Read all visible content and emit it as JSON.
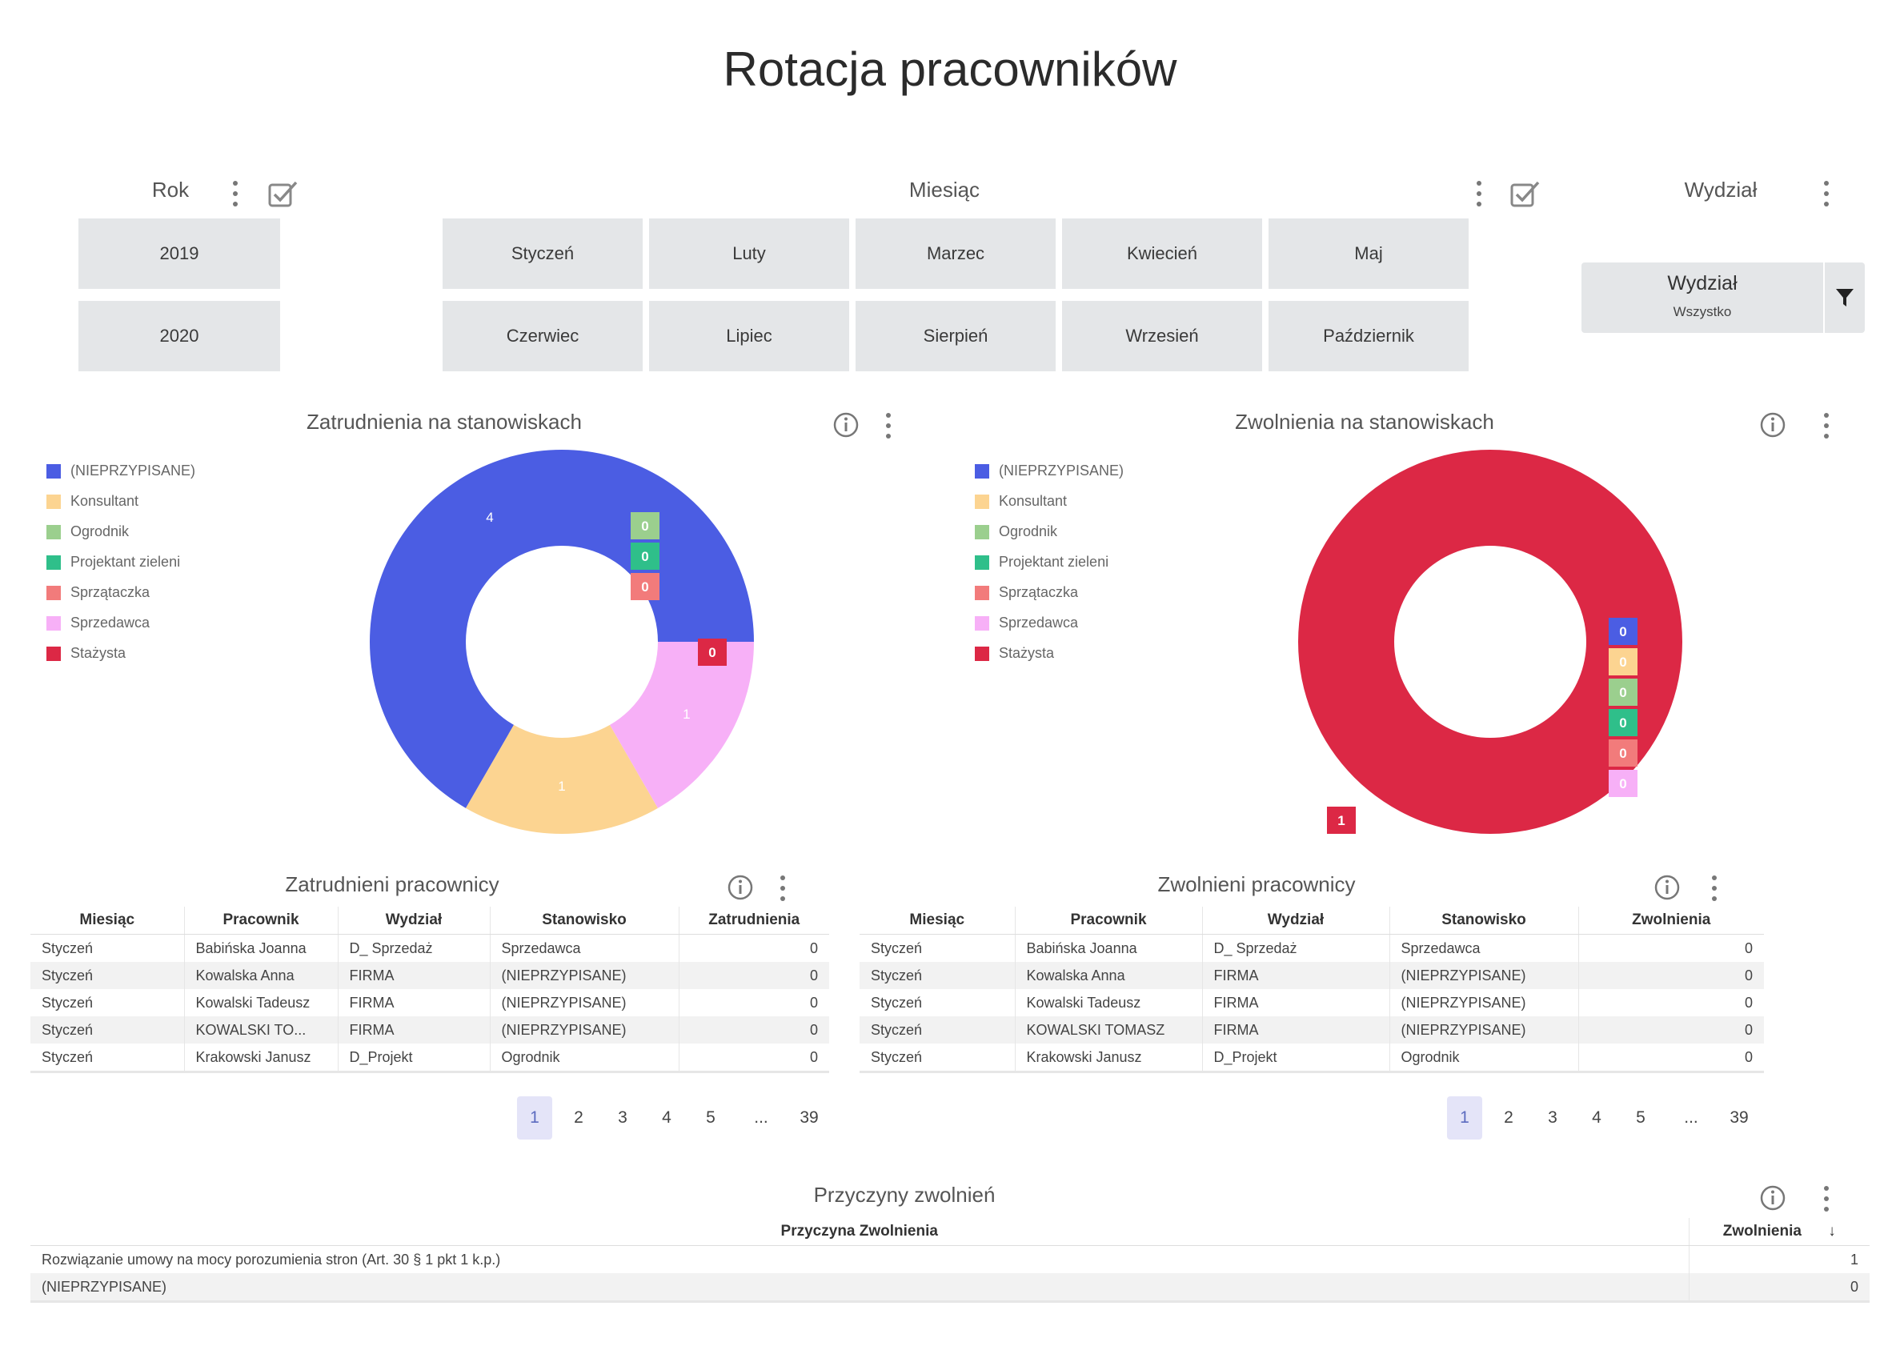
{
  "page": {
    "title": "Rotacja pracowników"
  },
  "slicers": {
    "year": {
      "title": "Rok",
      "options": [
        "2019",
        "2020"
      ]
    },
    "month": {
      "title": "Miesiąc",
      "options": [
        "Styczeń",
        "Luty",
        "Marzec",
        "Kwiecień",
        "Maj",
        "Czerwiec",
        "Lipiec",
        "Sierpień",
        "Wrzesień",
        "Październik"
      ]
    },
    "department": {
      "title": "Wydział",
      "dropdown_label": "Wydział",
      "dropdown_value": "Wszystko"
    }
  },
  "legend_items": [
    {
      "label": "(NIEPRZYPISANE)",
      "color": "#4b5de3"
    },
    {
      "label": "Konsultant",
      "color": "#fcd491"
    },
    {
      "label": "Ogrodnik",
      "color": "#9bcf8e"
    },
    {
      "label": "Projektant zieleni",
      "color": "#2fbf8a"
    },
    {
      "label": "Sprzątaczka",
      "color": "#f27b7b"
    },
    {
      "label": "Sprzedawca",
      "color": "#f7b0f7"
    },
    {
      "label": "Stażysta",
      "color": "#dc2845"
    }
  ],
  "chart_data": [
    {
      "type": "pie",
      "title": "Zatrudnienia na stanowiskach",
      "labels": [
        "(NIEPRZYPISANE)",
        "Konsultant",
        "Ogrodnik",
        "Projektant zieleni",
        "Sprzątaczka",
        "Sprzedawca",
        "Stażysta"
      ],
      "values": [
        4,
        1,
        0,
        0,
        0,
        1,
        0
      ],
      "colors": [
        "#4b5de3",
        "#fcd491",
        "#9bcf8e",
        "#2fbf8a",
        "#f27b7b",
        "#f7b0f7",
        "#dc2845"
      ],
      "donut": true
    },
    {
      "type": "pie",
      "title": "Zwolnienia na stanowiskach",
      "labels": [
        "(NIEPRZYPISANE)",
        "Konsultant",
        "Ogrodnik",
        "Projektant zieleni",
        "Sprzątaczka",
        "Sprzedawca",
        "Stażysta"
      ],
      "values": [
        0,
        0,
        0,
        0,
        0,
        0,
        1
      ],
      "colors": [
        "#4b5de3",
        "#fcd491",
        "#9bcf8e",
        "#2fbf8a",
        "#f27b7b",
        "#f7b0f7",
        "#dc2845"
      ],
      "donut": true
    }
  ],
  "hired_table": {
    "title": "Zatrudnieni pracownicy",
    "columns": [
      "Miesiąc",
      "Pracownik",
      "Wydział",
      "Stanowisko",
      "Zatrudnienia"
    ],
    "rows": [
      [
        "Styczeń",
        "Babińska Joanna",
        "D_ Sprzedaż",
        "Sprzedawca",
        "0"
      ],
      [
        "Styczeń",
        "Kowalska Anna",
        "FIRMA",
        "(NIEPRZYPISANE)",
        "0"
      ],
      [
        "Styczeń",
        "Kowalski Tadeusz",
        "FIRMA",
        "(NIEPRZYPISANE)",
        "0"
      ],
      [
        "Styczeń",
        "KOWALSKI TO...",
        "FIRMA",
        "(NIEPRZYPISANE)",
        "0"
      ],
      [
        "Styczeń",
        "Krakowski Janusz",
        "D_Projekt",
        "Ogrodnik",
        "0"
      ]
    ],
    "pagination": {
      "current": "1",
      "pages": [
        "1",
        "2",
        "3",
        "4",
        "5"
      ],
      "ellipsis": "...",
      "last": "39"
    }
  },
  "fired_table": {
    "title": "Zwolnieni pracownicy",
    "columns": [
      "Miesiąc",
      "Pracownik",
      "Wydział",
      "Stanowisko",
      "Zwolnienia"
    ],
    "rows": [
      [
        "Styczeń",
        "Babińska Joanna",
        "D_ Sprzedaż",
        "Sprzedawca",
        "0"
      ],
      [
        "Styczeń",
        "Kowalska Anna",
        "FIRMA",
        "(NIEPRZYPISANE)",
        "0"
      ],
      [
        "Styczeń",
        "Kowalski Tadeusz",
        "FIRMA",
        "(NIEPRZYPISANE)",
        "0"
      ],
      [
        "Styczeń",
        "KOWALSKI TOMASZ",
        "FIRMA",
        "(NIEPRZYPISANE)",
        "0"
      ],
      [
        "Styczeń",
        "Krakowski Janusz",
        "D_Projekt",
        "Ogrodnik",
        "0"
      ]
    ],
    "pagination": {
      "current": "1",
      "pages": [
        "1",
        "2",
        "3",
        "4",
        "5"
      ],
      "ellipsis": "...",
      "last": "39"
    }
  },
  "reasons_table": {
    "title": "Przyczyny zwolnień",
    "columns": [
      "Przyczyna Zwolnienia",
      "Zwolnienia"
    ],
    "sort_indicator": "↓",
    "rows": [
      [
        "Rozwiązanie umowy na mocy porozumienia stron (Art. 30 § 1 pkt 1 k.p.)",
        "1"
      ],
      [
        "(NIEPRZYPISANE)",
        "0"
      ]
    ]
  }
}
